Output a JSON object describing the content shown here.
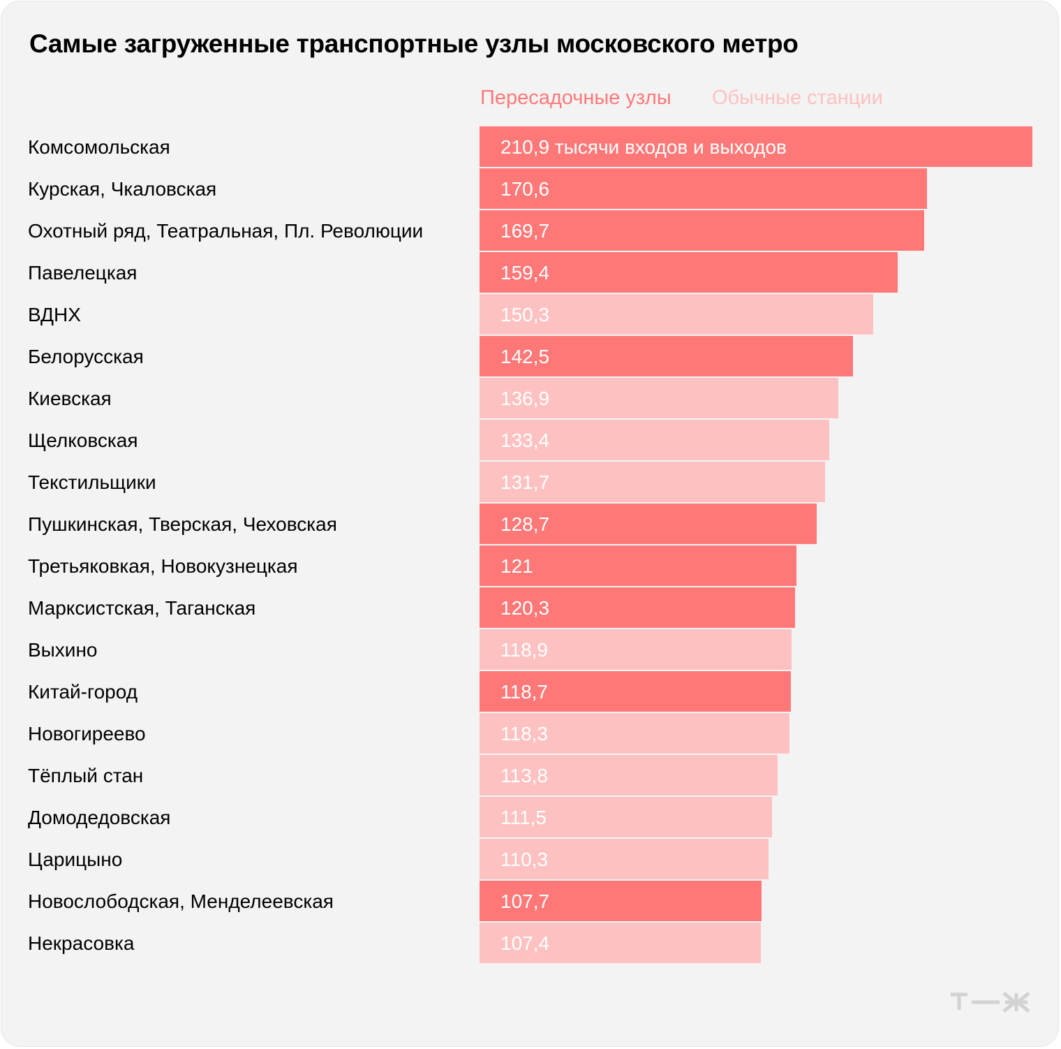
{
  "title": "Самые загруженные транспортные узлы московского метро",
  "legend": {
    "transfer": {
      "label": "Пересадочные узлы",
      "color": "#ff7878"
    },
    "regular": {
      "label": "Обычные станции",
      "color": "#fec1c1"
    }
  },
  "logo_text": "Т—Ж",
  "chart_data": {
    "type": "bar",
    "orientation": "horizontal",
    "title": "Самые загруженные транспортные узлы московского метро",
    "legend_position": "top-right",
    "grid": false,
    "xlim": [
      0,
      210.9
    ],
    "series": [
      {
        "name": "Пересадочные узлы",
        "color": "#ff7878"
      },
      {
        "name": "Обычные станции",
        "color": "#fec1c1"
      }
    ],
    "bars": [
      {
        "category": "Комсомольская",
        "value": 210.9,
        "label": "210,9 тысячи входов и выходов",
        "series": "Пересадочные узлы"
      },
      {
        "category": "Курская, Чкаловская",
        "value": 170.6,
        "label": "170,6",
        "series": "Пересадочные узлы"
      },
      {
        "category": "Охотный ряд, Театральная, Пл. Революции",
        "value": 169.7,
        "label": "169,7",
        "series": "Пересадочные узлы"
      },
      {
        "category": "Павелецкая",
        "value": 159.4,
        "label": "159,4",
        "series": "Пересадочные узлы"
      },
      {
        "category": "ВДНХ",
        "value": 150.3,
        "label": "150,3",
        "series": "Обычные станции"
      },
      {
        "category": "Белорусская",
        "value": 142.5,
        "label": "142,5",
        "series": "Пересадочные узлы"
      },
      {
        "category": "Киевская",
        "value": 136.9,
        "label": "136,9",
        "series": "Обычные станции"
      },
      {
        "category": "Щелковская",
        "value": 133.4,
        "label": "133,4",
        "series": "Обычные станции"
      },
      {
        "category": "Текстильщики",
        "value": 131.7,
        "label": "131,7",
        "series": "Обычные станции"
      },
      {
        "category": "Пушкинская, Тверская, Чеховская",
        "value": 128.7,
        "label": "128,7",
        "series": "Пересадочные узлы"
      },
      {
        "category": "Третьяковкая, Новокузнецкая",
        "value": 121,
        "label": "121",
        "series": "Пересадочные узлы"
      },
      {
        "category": "Марксистская, Таганская",
        "value": 120.3,
        "label": "120,3",
        "series": "Пересадочные узлы"
      },
      {
        "category": "Выхино",
        "value": 118.9,
        "label": "118,9",
        "series": "Обычные станции"
      },
      {
        "category": "Китай-город",
        "value": 118.7,
        "label": "118,7",
        "series": "Пересадочные узлы"
      },
      {
        "category": "Новогиреево",
        "value": 118.3,
        "label": "118,3",
        "series": "Обычные станции"
      },
      {
        "category": "Тёплый стан",
        "value": 113.8,
        "label": "113,8",
        "series": "Обычные станции"
      },
      {
        "category": "Домодедовская",
        "value": 111.5,
        "label": "111,5",
        "series": "Обычные станции"
      },
      {
        "category": "Царицыно",
        "value": 110.3,
        "label": "110,3",
        "series": "Обычные станции"
      },
      {
        "category": "Новослободская, Менделеевская",
        "value": 107.7,
        "label": "107,7",
        "series": "Пересадочные узлы"
      },
      {
        "category": "Некрасовка",
        "value": 107.4,
        "label": "107,4",
        "series": "Обычные станции"
      }
    ]
  }
}
